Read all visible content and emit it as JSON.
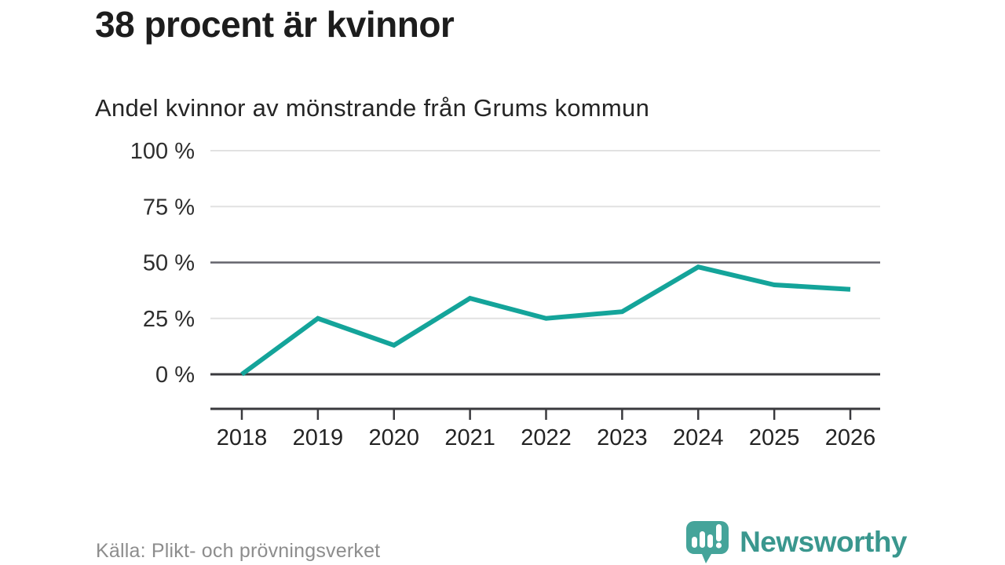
{
  "header": {
    "title": "38 procent är kvinnor",
    "subtitle": "Andel kvinnor av mönstrande från Grums kommun"
  },
  "footer": {
    "source": "Källa: Plikt- och prövningsverket",
    "brand_name": "Newsworthy"
  },
  "colors": {
    "line": "#14a49a",
    "grid_light": "#e1e1e1",
    "grid_half": "#64646c",
    "grid_zero": "#3a3a3e",
    "axis": "#3a3a3e",
    "tick_label": "#242424",
    "brand_teal": "#3a978e",
    "brand_icon_teal": "#45a49a"
  },
  "chart_data": {
    "type": "line",
    "title": "38 procent är kvinnor",
    "subtitle": "Andel kvinnor av mönstrande från Grums kommun",
    "categories": [
      "2018",
      "2019",
      "2020",
      "2021",
      "2022",
      "2023",
      "2024",
      "2025",
      "2026"
    ],
    "series": [
      {
        "name": "Andel kvinnor av mönstrande från Grums kommun",
        "values": [
          0,
          25,
          13,
          34,
          25,
          28,
          48,
          40,
          38
        ]
      }
    ],
    "unit": "%",
    "xlabel": "",
    "ylabel": "",
    "ylim": [
      0,
      100
    ],
    "yticks": [
      0,
      25,
      50,
      75,
      100
    ],
    "ytick_labels": [
      "0 %",
      "25 %",
      "50 %",
      "75 %",
      "100 %"
    ],
    "emphasized_gridlines": [
      0,
      50
    ],
    "grid": "horizontal-only",
    "legend": "none",
    "source": "Källa: Plikt- och prövningsverket"
  }
}
